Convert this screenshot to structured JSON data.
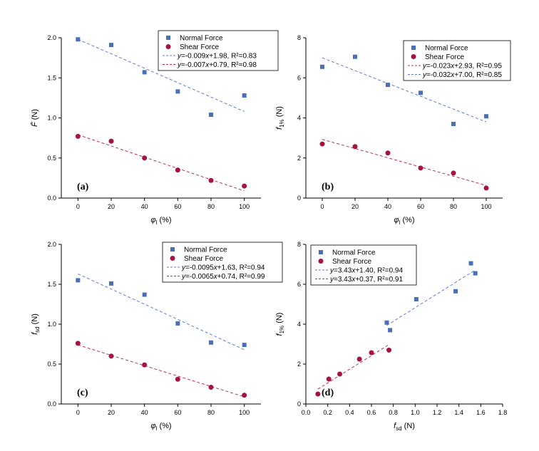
{
  "colors": {
    "normal": "#4a6fb8",
    "shear": "#a8123e",
    "normal_fit": "#5b7fd0",
    "shear_fit": "#c0304e"
  },
  "chart_data": [
    {
      "type": "scatter",
      "panel_label": "(a)",
      "xlabel": "φl (%)",
      "ylabel": "F̄ (N)",
      "xlim": [
        -10,
        110
      ],
      "ylim": [
        0,
        2.0
      ],
      "xticks": [
        0,
        20,
        40,
        60,
        80,
        100
      ],
      "yticks": [
        0.0,
        0.5,
        1.0,
        1.5,
        2.0
      ],
      "ytick_labels": [
        "0.0",
        "0.5",
        "1.0",
        "1.5",
        "2.0"
      ],
      "xtick_labels": [
        "0",
        "20",
        "40",
        "60",
        "80",
        "100"
      ],
      "legend_position": "top-right",
      "series": [
        {
          "name": "Normal Force",
          "marker": "square",
          "x": [
            0,
            20,
            40,
            60,
            80,
            100
          ],
          "y": [
            1.98,
            1.91,
            1.57,
            1.33,
            1.04,
            1.28
          ],
          "fit": {
            "label": "y=-0.009x+1.98, R²=0.83",
            "slope": -0.009,
            "intercept": 1.98,
            "x0": 0,
            "x1": 100
          }
        },
        {
          "name": "Shear Force",
          "marker": "circle",
          "x": [
            0,
            20,
            40,
            60,
            80,
            100
          ],
          "y": [
            0.77,
            0.71,
            0.5,
            0.35,
            0.22,
            0.15
          ],
          "fit": {
            "label": "y=-0.007x+0.79, R²=0.98",
            "slope": -0.007,
            "intercept": 0.79,
            "x0": 0,
            "x1": 100
          }
        }
      ]
    },
    {
      "type": "scatter",
      "panel_label": "(b)",
      "xlabel": "φl (%)",
      "ylabel": "f1% (N)",
      "xlim": [
        -10,
        110
      ],
      "ylim": [
        0,
        8
      ],
      "xticks": [
        0,
        20,
        40,
        60,
        80,
        100
      ],
      "yticks": [
        0,
        2,
        4,
        6,
        8
      ],
      "ytick_labels": [
        "0",
        "2",
        "4",
        "6",
        "8"
      ],
      "xtick_labels": [
        "0",
        "20",
        "40",
        "60",
        "80",
        "100"
      ],
      "legend_position": "top-right",
      "series": [
        {
          "name": "Normal Force",
          "marker": "square",
          "x": [
            0,
            20,
            40,
            60,
            80,
            100
          ],
          "y": [
            6.55,
            7.05,
            5.65,
            5.25,
            3.7,
            4.08
          ],
          "fit": {
            "label": "y=-0.032x+7.00, R²=0.85",
            "slope": -0.032,
            "intercept": 7.0,
            "x0": 0,
            "x1": 100
          }
        },
        {
          "name": "Shear Force",
          "marker": "circle",
          "x": [
            0,
            20,
            40,
            60,
            80,
            100
          ],
          "y": [
            2.7,
            2.57,
            2.25,
            1.5,
            1.25,
            0.5
          ],
          "fit": {
            "label": "y=-0.023x+2.93, R²=0.95",
            "slope": -0.023,
            "intercept": 2.93,
            "x0": 0,
            "x1": 100
          }
        }
      ],
      "legend_fit_order": [
        "Shear Force",
        "Normal Force"
      ]
    },
    {
      "type": "scatter",
      "panel_label": "(c)",
      "xlabel": "φl (%)",
      "ylabel": "fsd (N)",
      "xlim": [
        -10,
        110
      ],
      "ylim": [
        0,
        2.0
      ],
      "xticks": [
        0,
        20,
        40,
        60,
        80,
        100
      ],
      "yticks": [
        0.0,
        0.5,
        1.0,
        1.5,
        2.0
      ],
      "ytick_labels": [
        "0.0",
        "0.5",
        "1.0",
        "1.5",
        "2.0"
      ],
      "xtick_labels": [
        "0",
        "20",
        "40",
        "60",
        "80",
        "100"
      ],
      "legend_position": "top-right",
      "series": [
        {
          "name": "Normal Force",
          "marker": "square",
          "x": [
            0,
            20,
            40,
            60,
            80,
            100
          ],
          "y": [
            1.55,
            1.51,
            1.37,
            1.01,
            0.77,
            0.74
          ],
          "fit": {
            "label": "y=-0.0095x+1.63, R²=0.94",
            "slope": -0.0095,
            "intercept": 1.63,
            "x0": 0,
            "x1": 100
          }
        },
        {
          "name": "Shear Force",
          "marker": "circle",
          "x": [
            0,
            20,
            40,
            60,
            80,
            100
          ],
          "y": [
            0.76,
            0.6,
            0.49,
            0.31,
            0.21,
            0.11
          ],
          "fit": {
            "label": "y=-0.0065x+0.74, R²=0.99",
            "slope": -0.0065,
            "intercept": 0.74,
            "x0": 0,
            "x1": 100
          }
        }
      ]
    },
    {
      "type": "scatter",
      "panel_label": "(d)",
      "xlabel": "fsd (N)",
      "ylabel": "f1% (N)",
      "xlim": [
        0,
        1.8
      ],
      "ylim": [
        0,
        8
      ],
      "xticks": [
        0,
        0.2,
        0.4,
        0.6,
        0.8,
        1.0,
        1.2,
        1.4,
        1.6,
        1.8
      ],
      "xtick_labels": [
        "0.0",
        "0.2",
        "0.4",
        "0.6",
        "0.8",
        "1.0",
        "1.2",
        "1.4",
        "1.6",
        "1.8"
      ],
      "yticks": [
        0,
        2,
        4,
        6,
        8
      ],
      "ytick_labels": [
        "0",
        "2",
        "4",
        "6",
        "8"
      ],
      "legend_position": "top-left",
      "series": [
        {
          "name": "Normal Force",
          "marker": "square",
          "x": [
            0.74,
            0.77,
            1.01,
            1.37,
            1.51,
            1.55
          ],
          "y": [
            4.08,
            3.7,
            5.25,
            5.65,
            7.05,
            6.55
          ],
          "fit": {
            "label": "y=3.43x+1.40, R²=0.94",
            "slope": 3.43,
            "intercept": 1.4,
            "x0": 0.74,
            "x1": 1.55
          }
        },
        {
          "name": "Shear Force",
          "marker": "circle",
          "x": [
            0.11,
            0.21,
            0.31,
            0.49,
            0.6,
            0.76
          ],
          "y": [
            0.5,
            1.25,
            1.5,
            2.25,
            2.57,
            2.7
          ],
          "fit": {
            "label": "y=3.43x+0.37, R²=0.91",
            "slope": 3.43,
            "intercept": 0.37,
            "x0": 0.11,
            "x1": 0.76
          }
        }
      ]
    }
  ]
}
